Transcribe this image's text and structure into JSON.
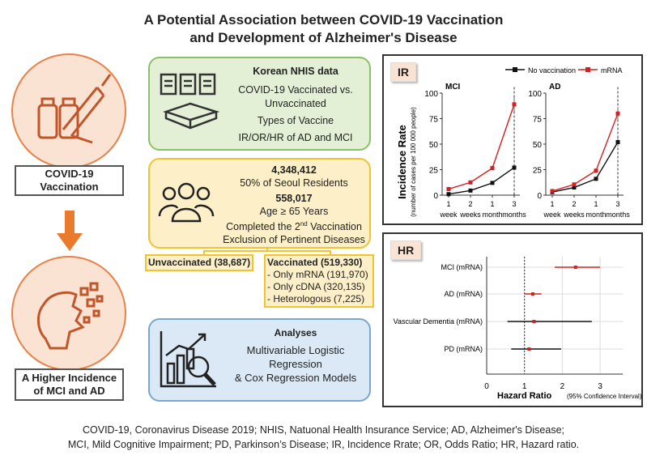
{
  "title": {
    "line1": "A Potential Association between COVID-19 Vaccination",
    "line2": "and Development of Alzheimer's Disease"
  },
  "left": {
    "top_label": "COVID-19 Vaccination",
    "bottom_label": "A Higher Incidence of MCI and AD",
    "arrow_color": "#ea7a2c",
    "icons": [
      "vaccine-syringe-icon",
      "brain-icon"
    ]
  },
  "nhis": {
    "title": "Korean NHIS data",
    "lines": [
      "COVID-19 Vaccinated vs.",
      "Unvaccinated",
      "Types of Vaccine",
      "IR/OR/HR of AD and MCI"
    ]
  },
  "cohort": {
    "n1": "4,348,412",
    "l1": "50% of Seoul Residents",
    "n2": "558,017",
    "l2": "Age ≥ 65 Years",
    "l3a": "Completed the 2",
    "l3sup": "nd",
    "l3b": " Vaccination",
    "l4": "Exclusion of Pertinent Diseases"
  },
  "unvaccinated": "Unvaccinated (38,687)",
  "vaccinated": {
    "title": "Vaccinated (519,330)",
    "items": [
      "- Only mRNA (191,970)",
      "- Only cDNA (320,135)",
      "- Heterologous (7,225)"
    ]
  },
  "analyses": {
    "title": "Analyses",
    "lines": [
      "Multivariable Logistic",
      "Regression",
      "& Cox Regression Models"
    ]
  },
  "footer": {
    "line1": "COVID-19, Coronavirus Disease 2019; NHIS, Natuonal Health Insurance Service; AD, Alzheimer's Disease;",
    "line2": "MCI, Mild Cognitive Impairment; PD, Parkinson’s Disease; IR, Incidence Rrate; OR, Odds Ratio; HR, Hazard ratio."
  },
  "chart_data": [
    {
      "type": "line",
      "panel": "IR",
      "ylabel": "Incidence Rate",
      "ylabel_sub": "(number of cases per 100 000 people)",
      "ylim": [
        0,
        100
      ],
      "yticks": [
        0,
        25,
        50,
        75,
        100
      ],
      "categories": [
        [
          "1",
          "week"
        ],
        [
          "2",
          "weeks"
        ],
        [
          "1",
          "month"
        ],
        [
          "3",
          "months"
        ]
      ],
      "legend": [
        "No vaccination",
        "mRNA"
      ],
      "colors": {
        "No vaccination": "#111111",
        "mRNA": "#d42020"
      },
      "subplots": [
        {
          "title": "MCI",
          "series": [
            {
              "name": "No vaccination",
              "values": [
                1,
                4.5,
                12,
                27
              ]
            },
            {
              "name": "mRNA",
              "values": [
                6,
                12.5,
                26.5,
                89
              ]
            }
          ]
        },
        {
          "title": "AD",
          "series": [
            {
              "name": "No vaccination",
              "values": [
                3,
                7.5,
                16,
                52
              ]
            },
            {
              "name": "mRNA",
              "values": [
                4,
                10.5,
                24,
                80
              ]
            }
          ]
        }
      ]
    },
    {
      "type": "forest",
      "panel": "HR",
      "xlabel": "Hazard Ratio",
      "xlabel_sub": "(95% Confidence Interval)",
      "xlim": [
        0,
        3.6
      ],
      "xticks": [
        0,
        1,
        2,
        3
      ],
      "reference": 1,
      "rows": [
        {
          "label": "MCI (mRNA)",
          "hr": 2.35,
          "lo": 1.8,
          "hi": 3.0,
          "color": "#d42020"
        },
        {
          "label": "AD (mRNA)",
          "hr": 1.22,
          "lo": 1.0,
          "hi": 1.45,
          "color": "#d42020"
        },
        {
          "label": "Vascular Dementia (mRNA)",
          "hr": 1.25,
          "lo": 0.55,
          "hi": 2.78,
          "color": "#111111"
        },
        {
          "label": "PD (mRNA)",
          "hr": 1.12,
          "lo": 0.65,
          "hi": 1.97,
          "color": "#111111"
        }
      ]
    }
  ]
}
